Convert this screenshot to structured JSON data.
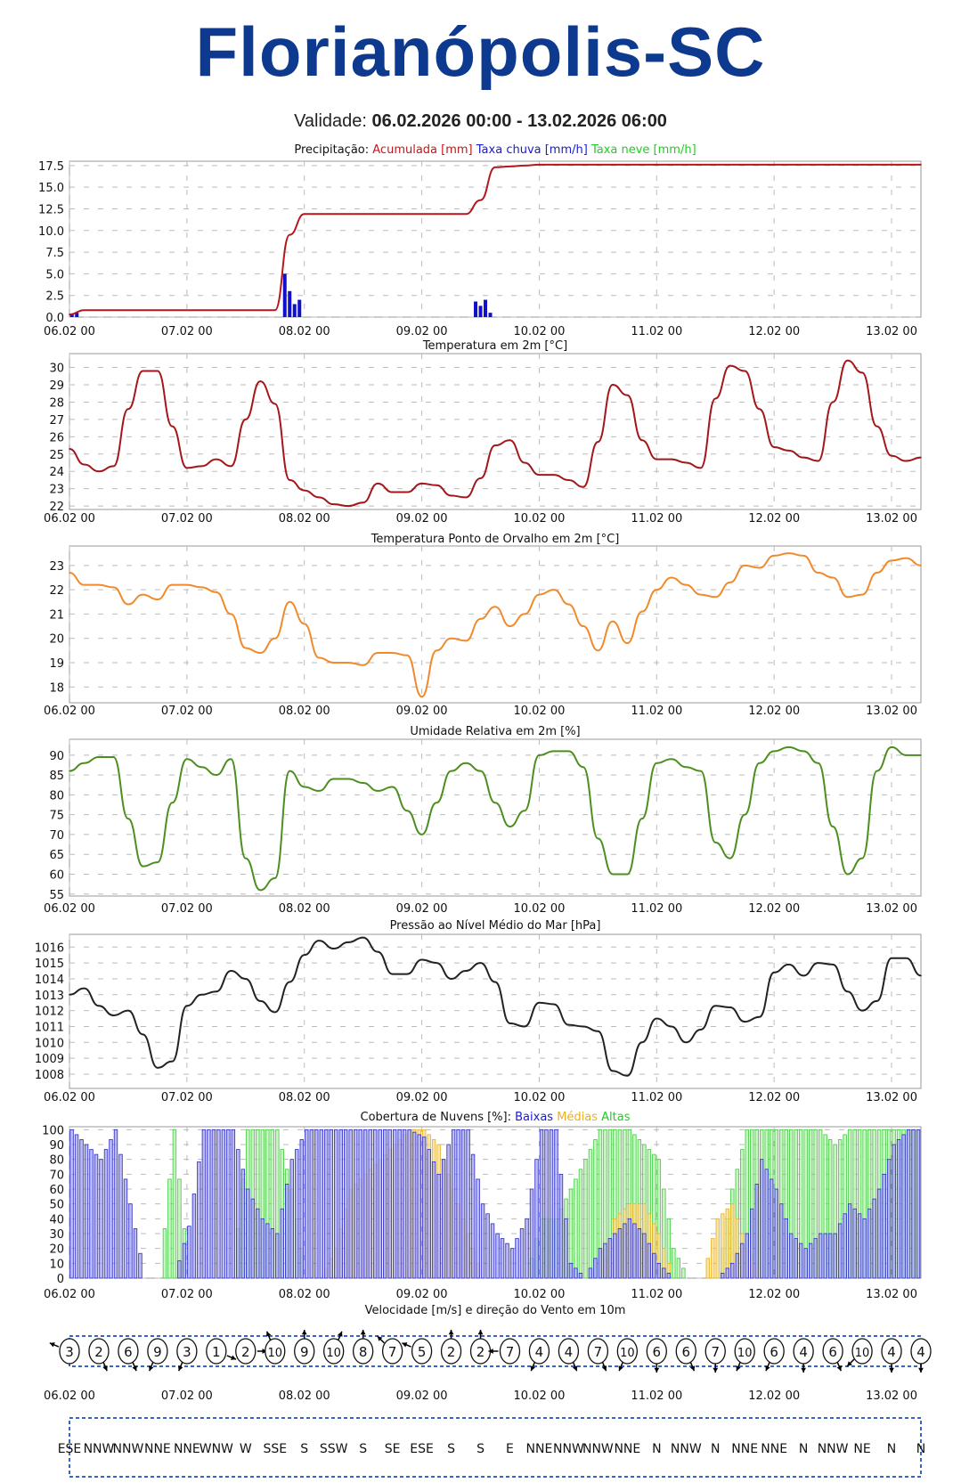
{
  "header": {
    "city": "Florianópolis-SC",
    "validity_label": "Validade:",
    "validity_value": "06.02.2026 00:00 - 13.02.2026 06:00"
  },
  "colors": {
    "brand": "#0d3a8f"
  },
  "chart_data": [
    {
      "type": "line",
      "id": "precip",
      "title_parts": [
        {
          "text": "Precipitação: ",
          "color": "#111111"
        },
        {
          "text": "Acumulada [mm] ",
          "color": "#c0171b"
        },
        {
          "text": "Taxa chuva [mm/h] ",
          "color": "#1a1ad0"
        },
        {
          "text": "Taxa neve [mm/h]",
          "color": "#22cc22"
        }
      ],
      "x_unit": "hours since 06.02 00",
      "x_tick_labels": [
        "06.02 00",
        "07.02 00",
        "08.02 00",
        "09.02 00",
        "10.02 00",
        "11.02 00",
        "12.02 00",
        "13.02 00"
      ],
      "x_ticks_h": [
        0,
        24,
        48,
        72,
        96,
        120,
        144,
        168
      ],
      "xlim": [
        0,
        174
      ],
      "y_ticks": [
        "0.0",
        "2.5",
        "5.0",
        "7.5",
        "10.0",
        "12.5",
        "15.0",
        "17.5"
      ],
      "ylim": [
        0,
        18
      ],
      "series": [
        {
          "name": "Acumulada",
          "color": "#b3181c",
          "step_h": 3,
          "values": [
            0.3,
            0.8,
            0.8,
            0.8,
            0.8,
            0.8,
            0.8,
            0.8,
            0.8,
            0.8,
            0.8,
            0.8,
            0.8,
            0.8,
            0.8,
            9.5,
            11.9,
            11.9,
            11.9,
            11.9,
            11.9,
            11.9,
            11.9,
            11.9,
            11.9,
            11.9,
            11.9,
            11.9,
            13.5,
            17.3,
            17.4,
            17.5,
            17.6,
            17.6,
            17.6,
            17.6,
            17.6,
            17.6,
            17.6,
            17.6,
            17.6,
            17.6,
            17.6,
            17.6,
            17.6,
            17.6,
            17.6,
            17.6,
            17.6,
            17.6,
            17.6,
            17.6,
            17.6,
            17.6,
            17.6,
            17.6,
            17.6,
            17.6,
            17.6
          ]
        }
      ],
      "bars": {
        "name": "Taxa chuva",
        "color": "#1010cc",
        "points": [
          [
            0.5,
            0.3
          ],
          [
            1.5,
            0.5
          ],
          [
            44,
            5.0
          ],
          [
            45,
            3.0
          ],
          [
            46,
            1.5
          ],
          [
            47,
            2.0
          ],
          [
            83,
            1.8
          ],
          [
            84,
            1.3
          ],
          [
            85,
            2.0
          ],
          [
            86,
            0.5
          ]
        ]
      }
    },
    {
      "type": "line",
      "id": "temperature",
      "title_parts": [
        {
          "text": "Temperatura em 2m [°C]",
          "color": "#111111"
        }
      ],
      "x_tick_labels": [
        "06.02 00",
        "07.02 00",
        "08.02 00",
        "09.02 00",
        "10.02 00",
        "11.02 00",
        "12.02 00",
        "13.02 00"
      ],
      "x_ticks_h": [
        0,
        24,
        48,
        72,
        96,
        120,
        144,
        168
      ],
      "xlim": [
        0,
        174
      ],
      "y_ticks": [
        "22",
        "23",
        "24",
        "25",
        "26",
        "27",
        "28",
        "29",
        "30"
      ],
      "ylim": [
        21.8,
        30.8
      ],
      "series": [
        {
          "name": "Temperatura",
          "color": "#a3171a",
          "step_h": 3,
          "values": [
            25.3,
            24.4,
            24.0,
            24.3,
            27.6,
            29.8,
            29.8,
            26.6,
            24.2,
            24.3,
            24.7,
            24.3,
            27.0,
            29.2,
            27.9,
            23.5,
            22.9,
            22.5,
            22.1,
            22.0,
            22.2,
            23.3,
            22.8,
            22.8,
            23.3,
            23.2,
            22.6,
            22.5,
            23.6,
            25.5,
            25.8,
            24.5,
            23.8,
            23.8,
            23.5,
            23.1,
            25.7,
            29.0,
            28.4,
            25.8,
            24.7,
            24.7,
            24.5,
            24.2,
            28.2,
            30.1,
            29.8,
            27.6,
            25.4,
            25.2,
            24.8,
            24.6,
            28.0,
            30.4,
            29.7,
            26.6,
            24.9,
            24.6,
            24.8
          ]
        }
      ]
    },
    {
      "type": "line",
      "id": "dewpoint",
      "title_parts": [
        {
          "text": "Temperatura Ponto de Orvalho em 2m [°C]",
          "color": "#111111"
        }
      ],
      "x_tick_labels": [
        "06.02 00",
        "07.02 00",
        "08.02 00",
        "09.02 00",
        "10.02 00",
        "11.02 00",
        "12.02 00",
        "13.02 00"
      ],
      "x_ticks_h": [
        0,
        24,
        48,
        72,
        96,
        120,
        144,
        168
      ],
      "xlim": [
        0,
        174
      ],
      "y_ticks": [
        "18",
        "19",
        "20",
        "21",
        "22",
        "23"
      ],
      "ylim": [
        17.35,
        23.8
      ],
      "series": [
        {
          "name": "Ponto de Orvalho",
          "color": "#f08a2a",
          "step_h": 3,
          "values": [
            22.7,
            22.2,
            22.2,
            22.1,
            21.4,
            21.8,
            21.6,
            22.2,
            22.2,
            22.1,
            21.9,
            21.0,
            19.6,
            19.4,
            20.0,
            21.5,
            20.6,
            19.2,
            19.0,
            19.0,
            18.9,
            19.4,
            19.4,
            19.3,
            17.6,
            19.5,
            20.0,
            19.9,
            20.8,
            21.3,
            20.5,
            21.0,
            21.8,
            22.0,
            21.4,
            20.5,
            19.5,
            20.7,
            19.8,
            21.1,
            22.0,
            22.5,
            22.2,
            21.8,
            21.7,
            22.3,
            23.0,
            22.9,
            23.4,
            23.5,
            23.4,
            22.7,
            22.5,
            21.7,
            21.8,
            22.7,
            23.2,
            23.3,
            23.0
          ]
        }
      ]
    },
    {
      "type": "line",
      "id": "humidity",
      "title_parts": [
        {
          "text": "Umidade Relativa em 2m [%]",
          "color": "#111111"
        }
      ],
      "x_tick_labels": [
        "06.02 00",
        "07.02 00",
        "08.02 00",
        "09.02 00",
        "10.02 00",
        "11.02 00",
        "12.02 00",
        "13.02 00"
      ],
      "x_ticks_h": [
        0,
        24,
        48,
        72,
        96,
        120,
        144,
        168
      ],
      "xlim": [
        0,
        174
      ],
      "y_ticks": [
        "55",
        "60",
        "65",
        "70",
        "75",
        "80",
        "85",
        "90"
      ],
      "ylim": [
        54.5,
        94
      ],
      "series": [
        {
          "name": "Umidade",
          "color": "#4c8f1e",
          "step_h": 3,
          "values": [
            86,
            88,
            89.5,
            89.5,
            74,
            62,
            63,
            78,
            89,
            87,
            85,
            89,
            64,
            56,
            59,
            86,
            82,
            81,
            84,
            84,
            83,
            81,
            82,
            76,
            70,
            78,
            86,
            88,
            86,
            78,
            72,
            76,
            90,
            91,
            91,
            87,
            69,
            60,
            60,
            74,
            88,
            89,
            87,
            86,
            68,
            64,
            75,
            88,
            91,
            92,
            91,
            88,
            72,
            60,
            64,
            86,
            92,
            90,
            90
          ]
        }
      ]
    },
    {
      "type": "line",
      "id": "pressure",
      "title_parts": [
        {
          "text": "Pressão ao Nível Médio do Mar [hPa]",
          "color": "#111111"
        }
      ],
      "x_tick_labels": [
        "06.02 00",
        "07.02 00",
        "08.02 00",
        "09.02 00",
        "10.02 00",
        "11.02 00",
        "12.02 00",
        "13.02 00"
      ],
      "x_ticks_h": [
        0,
        24,
        48,
        72,
        96,
        120,
        144,
        168
      ],
      "xlim": [
        0,
        174
      ],
      "y_ticks": [
        "1008",
        "1009",
        "1010",
        "1011",
        "1012",
        "1013",
        "1014",
        "1015",
        "1016"
      ],
      "ylim": [
        1007.1,
        1016.8
      ],
      "series": [
        {
          "name": "Pressão",
          "color": "#222222",
          "step_h": 3,
          "values": [
            1013,
            1013.4,
            1012.3,
            1011.7,
            1012.0,
            1010.5,
            1008.4,
            1008.8,
            1012.3,
            1013.0,
            1013.2,
            1014.5,
            1014.0,
            1012.6,
            1011.9,
            1013.8,
            1015.5,
            1016.4,
            1015.9,
            1016.3,
            1016.6,
            1015.7,
            1014.3,
            1014.3,
            1015.2,
            1015.0,
            1014.0,
            1014.5,
            1015.0,
            1013.8,
            1011.2,
            1011.0,
            1012.5,
            1012.4,
            1011.1,
            1011.0,
            1010.7,
            1008.2,
            1007.9,
            1010.0,
            1011.5,
            1011.0,
            1010.0,
            1010.8,
            1012.3,
            1012.2,
            1011.3,
            1011.6,
            1014.4,
            1014.9,
            1014.2,
            1015.0,
            1014.9,
            1013.2,
            1012.0,
            1012.6,
            1015.3,
            1015.3,
            1014.2
          ]
        }
      ]
    },
    {
      "type": "bar",
      "id": "clouds",
      "title_parts": [
        {
          "text": "Cobertura de Nuvens [%]: ",
          "color": "#111111"
        },
        {
          "text": "Baixas ",
          "color": "#1a1ad0"
        },
        {
          "text": "Médias ",
          "color": "#e8b020"
        },
        {
          "text": "Altas",
          "color": "#22cc22"
        }
      ],
      "x_tick_labels": [
        "06.02 00",
        "07.02 00",
        "08.02 00",
        "09.02 00",
        "10.02 00",
        "11.02 00",
        "12.02 00",
        "13.02 00"
      ],
      "x_ticks_h": [
        0,
        24,
        48,
        72,
        96,
        120,
        144,
        168
      ],
      "xlim": [
        0,
        174
      ],
      "y_ticks": [
        "0",
        "10",
        "20",
        "30",
        "40",
        "50",
        "60",
        "70",
        "80",
        "90",
        "100"
      ],
      "ylim": [
        0,
        102
      ],
      "series": [
        {
          "name": "Altas",
          "color": "#3ecc3e",
          "fill": "#b8f0b0",
          "step_h": 3,
          "values": [
            0,
            0,
            0,
            0,
            0,
            0,
            0,
            100,
            0,
            0,
            0,
            0,
            100,
            100,
            100,
            60,
            0,
            0,
            0,
            0,
            0,
            0,
            0,
            0,
            0,
            0,
            0,
            0,
            0,
            0,
            0,
            0,
            40,
            40,
            60,
            80,
            100,
            100,
            100,
            90,
            80,
            20,
            0,
            0,
            0,
            60,
            100,
            100,
            100,
            100,
            100,
            100,
            90,
            100,
            100,
            100,
            100,
            100,
            100
          ]
        },
        {
          "name": "Médias",
          "color": "#e8b020",
          "fill": "#f6dc8c",
          "step_h": 3,
          "values": [
            0,
            0,
            0,
            0,
            0,
            0,
            0,
            0,
            0,
            0,
            0,
            0,
            0,
            0,
            0,
            0,
            0,
            0,
            20,
            60,
            70,
            80,
            90,
            100,
            100,
            90,
            60,
            30,
            0,
            0,
            0,
            0,
            0,
            0,
            0,
            0,
            0,
            40,
            50,
            50,
            30,
            0,
            0,
            0,
            40,
            50,
            20,
            0,
            0,
            0,
            0,
            0,
            0,
            0,
            0,
            0,
            0,
            0,
            0
          ]
        },
        {
          "name": "Baixas",
          "color": "#2a2ac8",
          "fill": "#a4a4ec",
          "step_h": 3,
          "values": [
            100,
            90,
            80,
            100,
            50,
            0,
            0,
            0,
            35,
            100,
            100,
            100,
            60,
            40,
            30,
            80,
            100,
            100,
            100,
            100,
            100,
            100,
            100,
            100,
            95,
            70,
            100,
            100,
            50,
            30,
            20,
            40,
            100,
            100,
            10,
            0,
            20,
            30,
            40,
            30,
            10,
            0,
            0,
            0,
            0,
            10,
            30,
            80,
            60,
            30,
            20,
            30,
            30,
            50,
            40,
            60,
            90,
            100,
            100
          ]
        }
      ]
    }
  ],
  "wind": {
    "title": "Velocidade [m/s] e direção do Vento em 10m",
    "x_tick_labels": [
      "06.02 00",
      "07.02 00",
      "08.02 00",
      "09.02 00",
      "10.02 00",
      "11.02 00",
      "12.02 00",
      "13.02 00"
    ],
    "speeds": [
      "3",
      "2",
      "6",
      "9",
      "3",
      "1",
      "2",
      "10",
      "9",
      "10",
      "8",
      "7",
      "5",
      "2",
      "2",
      "7",
      "4",
      "4",
      "7",
      "10",
      "6",
      "6",
      "7",
      "10",
      "6",
      "4",
      "6",
      "10",
      "4",
      "4"
    ],
    "directions": [
      "ESE",
      "NNW",
      "NNW",
      "NNE",
      "NNE",
      "WNW",
      "W",
      "SSE",
      "S",
      "SSW",
      "S",
      "SE",
      "ESE",
      "S",
      "S",
      "E",
      "NNE",
      "NNW",
      "NNW",
      "NNE",
      "N",
      "NNW",
      "N",
      "NNE",
      "NNE",
      "N",
      "NNW",
      "NE",
      "N",
      "N"
    ]
  }
}
